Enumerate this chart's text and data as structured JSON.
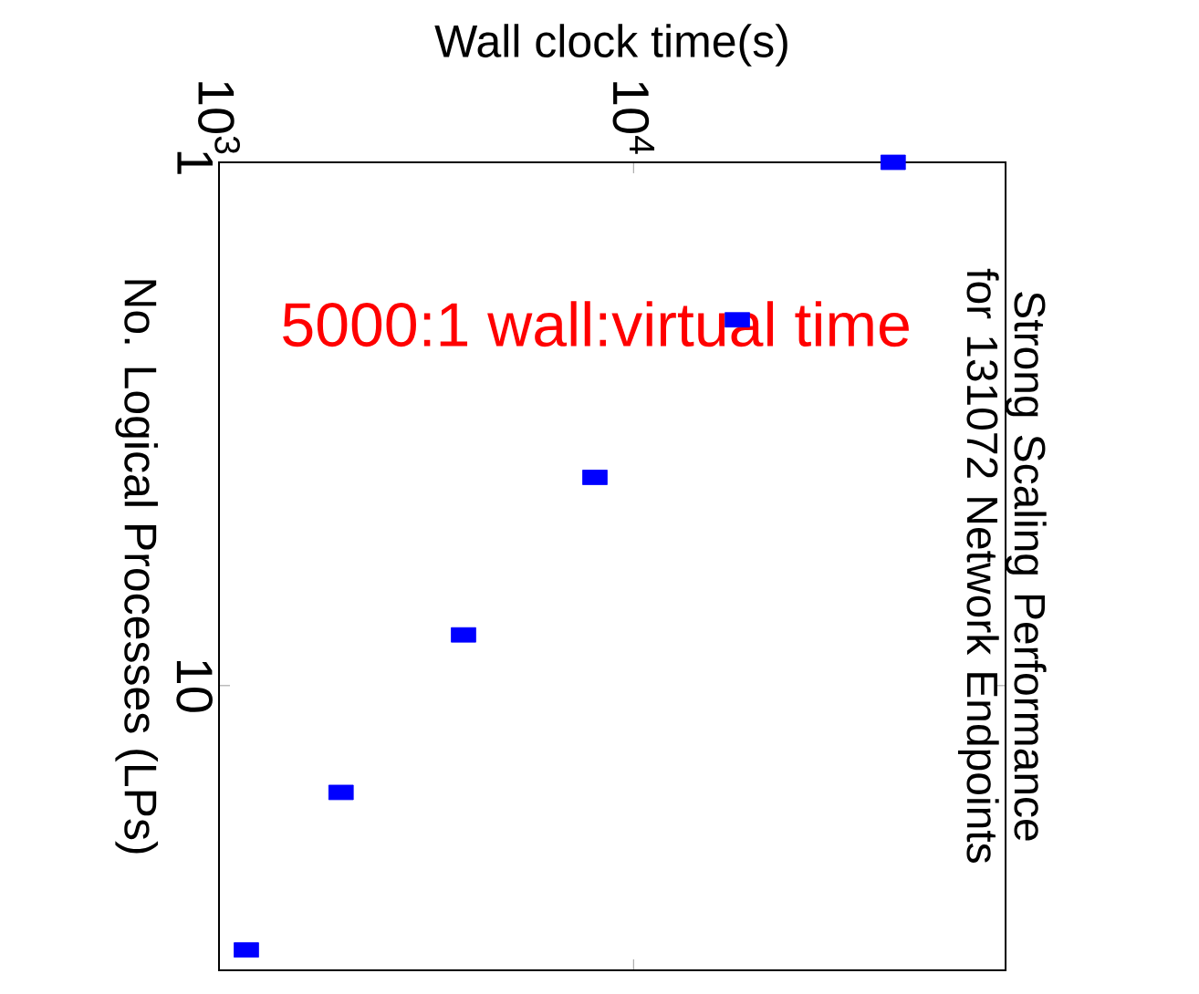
{
  "chart_data": {
    "type": "scatter",
    "title": "Strong Scaling Performance for 131072 Network Endpoints",
    "xlabel": "Wall clock time(s)",
    "ylabel": "No. Logical Processes (LPs)",
    "annotations": [
      "5000:1 wall:virtual time"
    ],
    "x": [
      1164,
      1970,
      3890,
      8070,
      17800,
      42300
    ],
    "series": [
      {
        "color": "#0000ff",
        "values": [
          32,
          16,
          8,
          4,
          2,
          1
        ]
      }
    ],
    "log": "xy",
    "xlim": [
      1000,
      79000
    ],
    "ylim": [
      35,
      1
    ],
    "xticks": [
      {
        "value": 1000,
        "label": "10$^{3}$"
      },
      {
        "value": 10000,
        "label": "10$^{4}$"
      }
    ],
    "yticks": [
      1,
      10
    ],
    "marker": "square",
    "grid": false
  }
}
